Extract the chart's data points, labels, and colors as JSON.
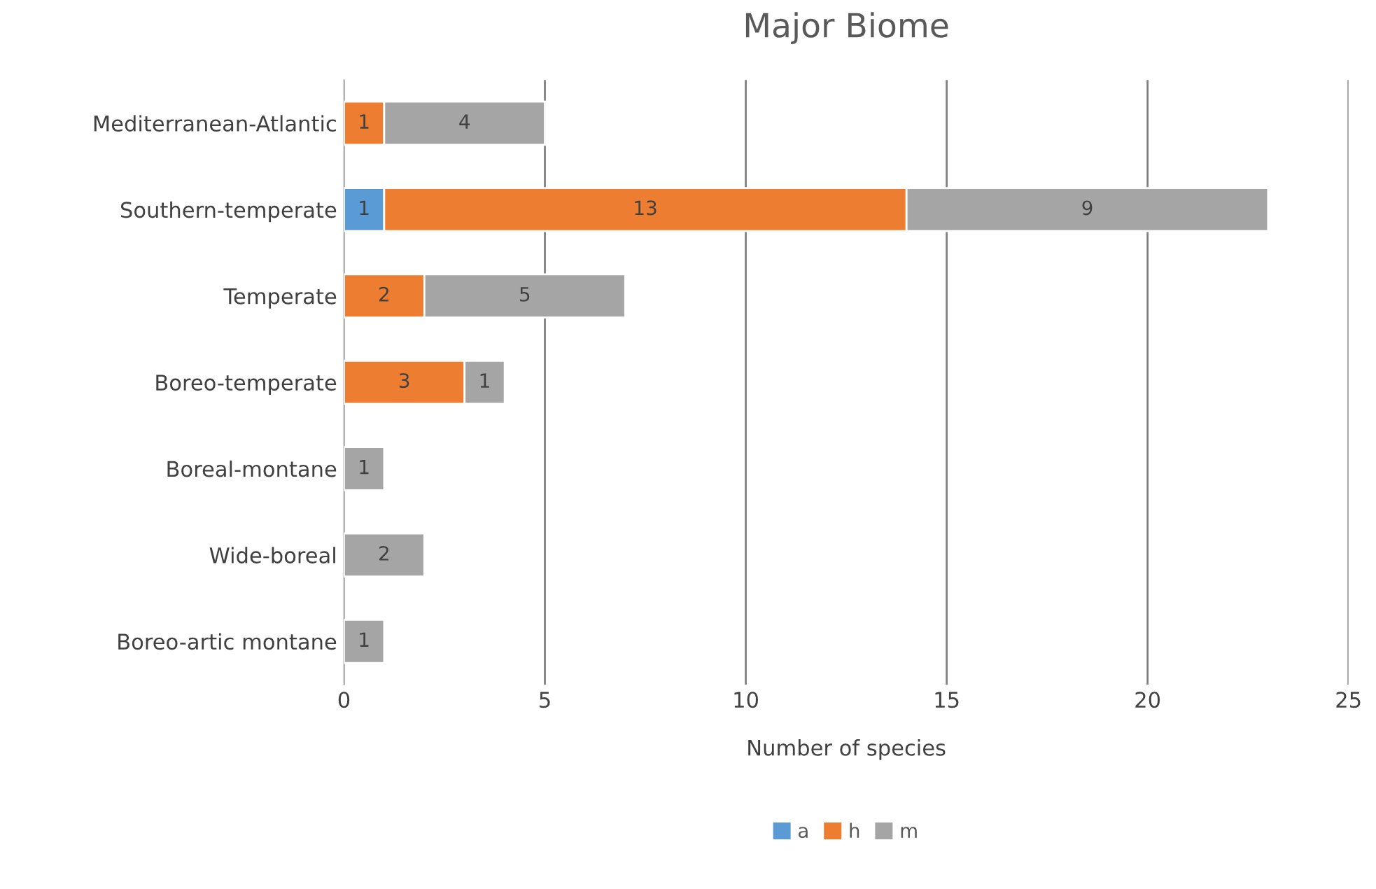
{
  "chart_data": {
    "type": "bar",
    "orientation": "horizontal",
    "stacked": true,
    "title": "Major Biome",
    "xlabel": "Number of species",
    "categories": [
      "Mediterranean-Atlantic",
      "Southern-temperate",
      "Temperate",
      "Boreo-temperate",
      "Boreal-montane",
      "Wide-boreal",
      "Boreo-artic montane"
    ],
    "series": [
      {
        "name": "a",
        "color": "#5b9bd5",
        "values": [
          null,
          1,
          null,
          null,
          null,
          null,
          null
        ]
      },
      {
        "name": "h",
        "color": "#ed7d31",
        "values": [
          1,
          13,
          2,
          3,
          null,
          null,
          null
        ]
      },
      {
        "name": "m",
        "color": "#a5a5a5",
        "values": [
          4,
          9,
          5,
          1,
          1,
          2,
          1
        ]
      }
    ],
    "xlim": [
      0,
      25
    ],
    "xticks": [
      0,
      5,
      10,
      15,
      20,
      25
    ],
    "grid": "x",
    "legend": "bottom",
    "data_labels": true
  }
}
